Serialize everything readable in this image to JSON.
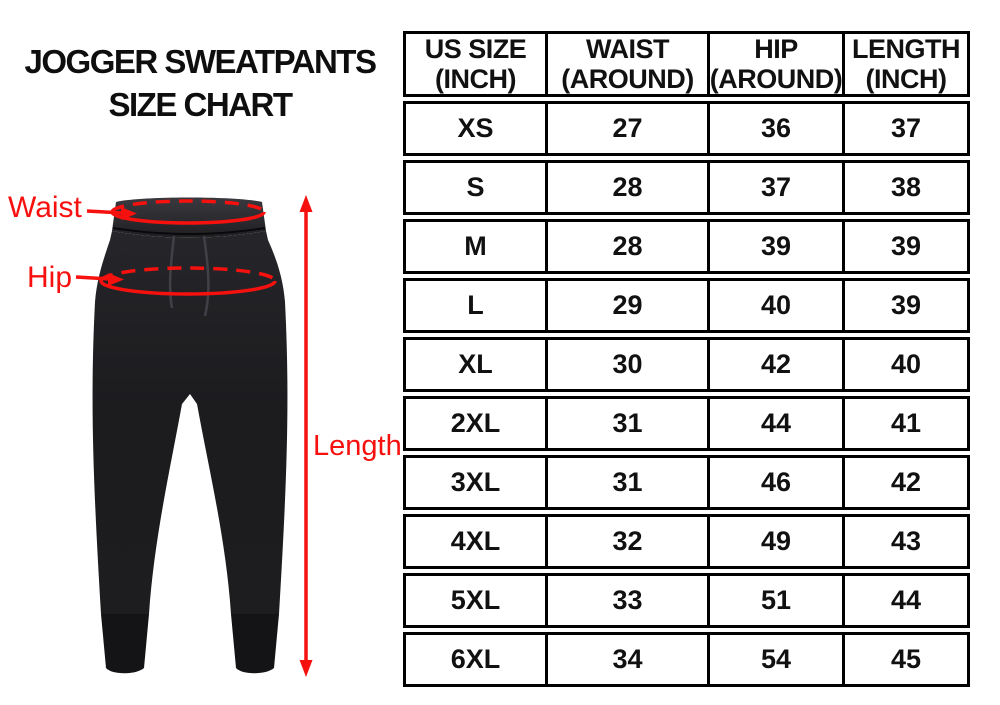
{
  "title": {
    "line1": "JOGGER SWEATPANTS",
    "line2": "SIZE CHART"
  },
  "diagram": {
    "waist_label": "Waist",
    "hip_label": "Hip",
    "length_label": "Length",
    "annotation_color": "#f6100e",
    "pants_color": "#1d1d1f"
  },
  "chart_data": {
    "type": "table",
    "title": "Jogger Sweatpants Size Chart",
    "columns": [
      "US SIZE\n(INCH)",
      "WAIST\n(AROUND)",
      "HIP\n(AROUND)",
      "LENGTH\n(INCH)"
    ],
    "rows": [
      [
        "XS",
        "27",
        "36",
        "37"
      ],
      [
        "S",
        "28",
        "37",
        "38"
      ],
      [
        "M",
        "28",
        "39",
        "39"
      ],
      [
        "L",
        "29",
        "40",
        "39"
      ],
      [
        "XL",
        "30",
        "42",
        "40"
      ],
      [
        "2XL",
        "31",
        "44",
        "41"
      ],
      [
        "3XL",
        "31",
        "46",
        "42"
      ],
      [
        "4XL",
        "32",
        "49",
        "43"
      ],
      [
        "5XL",
        "33",
        "51",
        "44"
      ],
      [
        "6XL",
        "34",
        "54",
        "45"
      ]
    ]
  }
}
